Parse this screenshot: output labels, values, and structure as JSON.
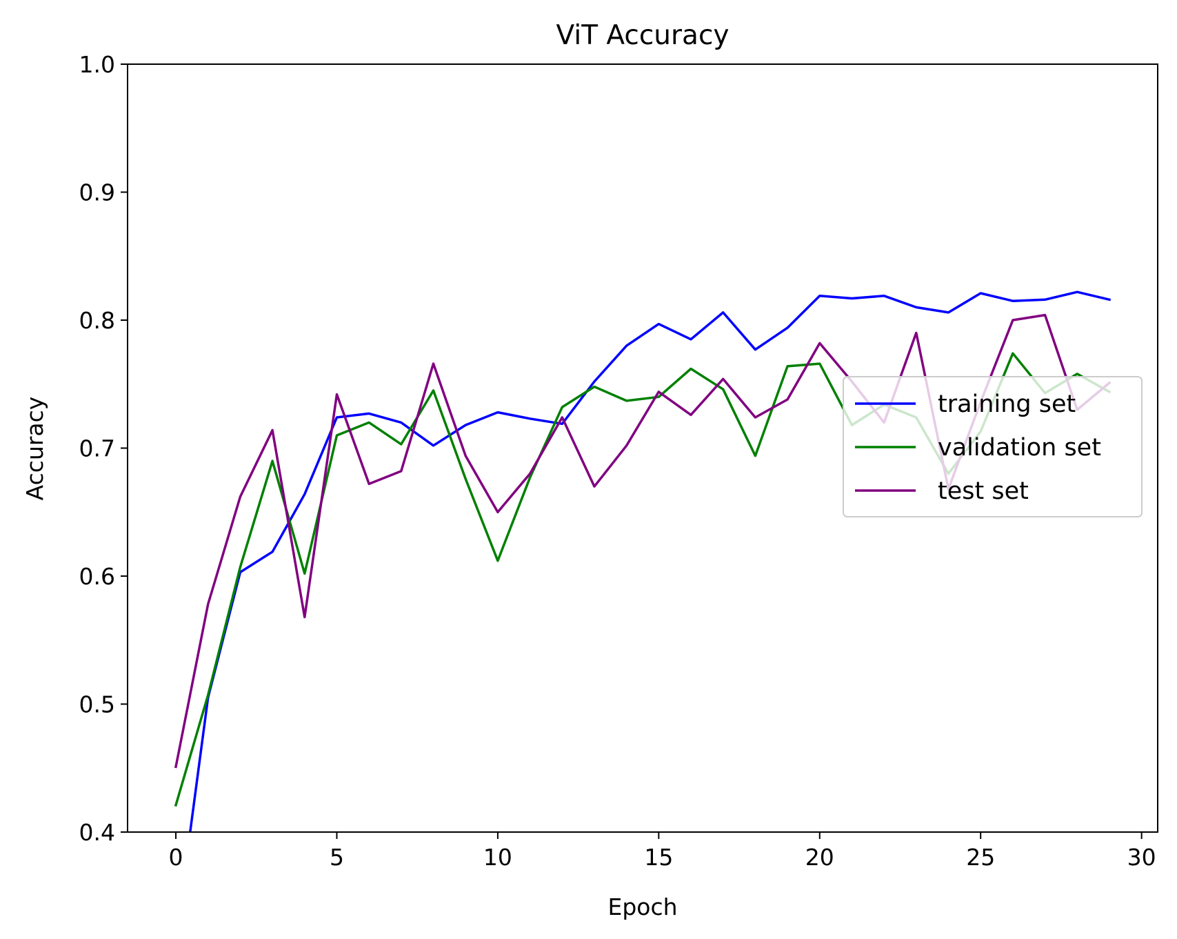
{
  "chart_data": {
    "type": "line",
    "title": "ViT Accuracy",
    "xlabel": "Epoch",
    "ylabel": "Accuracy",
    "xlim": [
      -1.5,
      30.5
    ],
    "ylim": [
      0.4,
      1.0
    ],
    "xticks": [
      0,
      5,
      10,
      15,
      20,
      25,
      30
    ],
    "xtick_labels": [
      "0",
      "5",
      "10",
      "15",
      "20",
      "25",
      "30"
    ],
    "yticks": [
      0.4,
      0.5,
      0.6,
      0.7,
      0.8,
      0.9,
      1.0
    ],
    "ytick_labels": [
      "0.4",
      "0.5",
      "0.6",
      "0.7",
      "0.8",
      "0.9",
      "1.0"
    ],
    "grid": false,
    "legend_position": "center-right",
    "x": [
      0,
      1,
      2,
      3,
      4,
      5,
      6,
      7,
      8,
      9,
      10,
      11,
      12,
      13,
      14,
      15,
      16,
      17,
      18,
      19,
      20,
      21,
      22,
      23,
      24,
      25,
      26,
      27,
      28,
      29
    ],
    "series": [
      {
        "name": "training set",
        "color": "#0000ff",
        "values": [
          0.316,
          0.505,
          0.603,
          0.619,
          0.664,
          0.724,
          0.727,
          0.72,
          0.702,
          0.718,
          0.728,
          0.723,
          0.719,
          0.752,
          0.78,
          0.797,
          0.785,
          0.806,
          0.777,
          0.794,
          0.819,
          0.817,
          0.819,
          0.81,
          0.806,
          0.821,
          0.815,
          0.816,
          0.822,
          0.816
        ]
      },
      {
        "name": "validation set",
        "color": "#008000",
        "values": [
          0.421,
          0.507,
          0.607,
          0.69,
          0.602,
          0.71,
          0.72,
          0.703,
          0.745,
          0.676,
          0.612,
          0.677,
          0.732,
          0.748,
          0.737,
          0.74,
          0.762,
          0.746,
          0.694,
          0.764,
          0.766,
          0.718,
          0.734,
          0.724,
          0.68,
          0.713,
          0.774,
          0.743,
          0.758,
          0.744
        ]
      },
      {
        "name": "test set",
        "color": "#800080",
        "values": [
          0.451,
          0.578,
          0.662,
          0.714,
          0.568,
          0.742,
          0.672,
          0.682,
          0.766,
          0.694,
          0.65,
          0.68,
          0.724,
          0.67,
          0.702,
          0.744,
          0.726,
          0.754,
          0.724,
          0.738,
          0.782,
          0.752,
          0.72,
          0.79,
          0.668,
          0.736,
          0.8,
          0.804,
          0.73,
          0.751
        ]
      }
    ]
  }
}
